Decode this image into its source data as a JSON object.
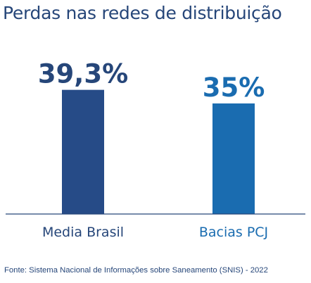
{
  "title": "Perdas nas redes de distribuição",
  "source": "Fonte: Sistema Nacional de Informações sobre Saneamento (SNIS) - 2022",
  "colors": {
    "text": "#264679",
    "axis": "#264679"
  },
  "chart_data": {
    "type": "bar",
    "categories": [
      "Media Brasil",
      "Bacias PCJ"
    ],
    "values": [
      39.3,
      35
    ],
    "value_labels": [
      "39,3%",
      "35%"
    ],
    "colors": [
      "#264b87",
      "#1a6cb0"
    ],
    "label_colors": [
      "#264679",
      "#1a6cb0"
    ],
    "unit": "%",
    "ylim": [
      0,
      41
    ],
    "grid": false,
    "legend": "none"
  }
}
